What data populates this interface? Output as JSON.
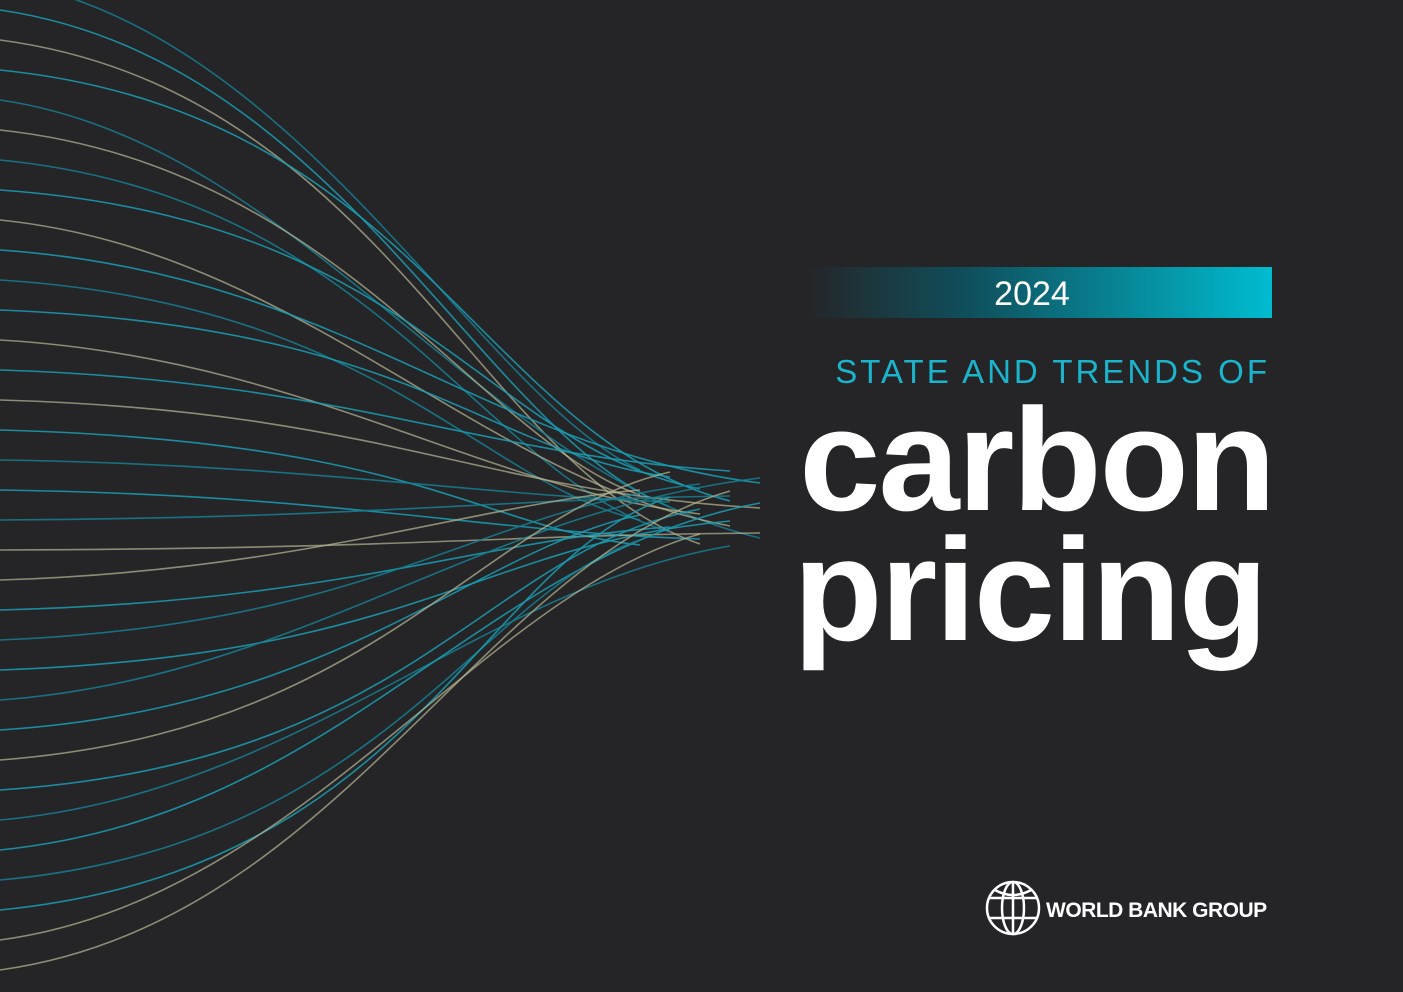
{
  "header": {
    "year": "2024",
    "subtitle": "STATE AND TRENDS OF",
    "title_line1": "carbon",
    "title_line2": "pricing"
  },
  "footer": {
    "logo_text": "WORLD BANK GROUP"
  }
}
